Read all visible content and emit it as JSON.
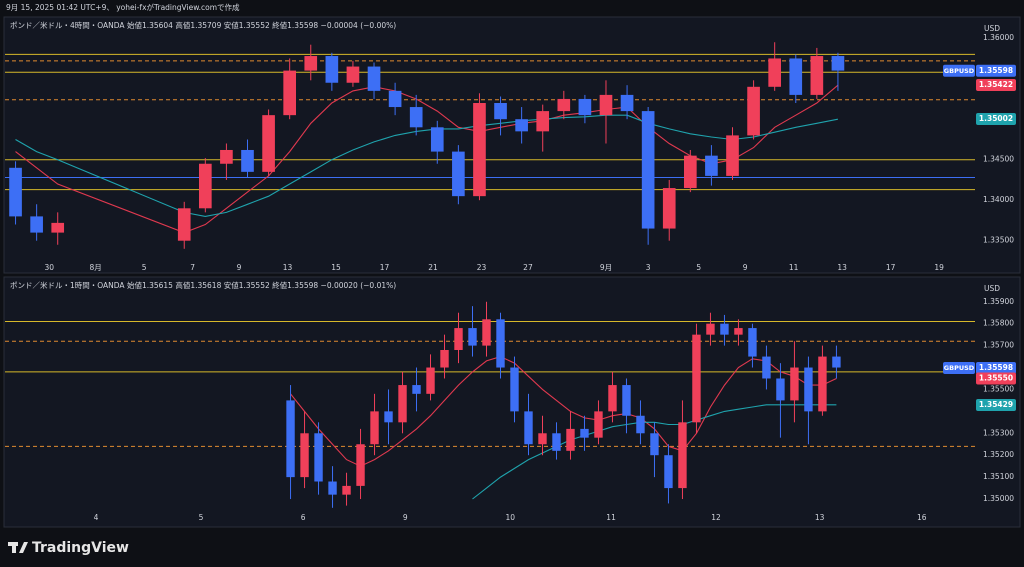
{
  "header": {
    "caption": "9月 15, 2025 01:42 UTC+9、 yohei-fxがTradingView.comで作成"
  },
  "footer": {
    "brand": "TradingView"
  },
  "chart_data": [
    {
      "type": "candlestick",
      "legend": "ポンド／米ドル・4時間・OANDA 始値1.35604 高値1.35709 安値1.35552 終値1.35598 −0.00004 (−0.00%)",
      "currency": "USD",
      "up_color": "#f0405a",
      "down_color": "#3d6ff5",
      "x": [
        0,
        1,
        2,
        8,
        9,
        10,
        11,
        12,
        13,
        14,
        15,
        16,
        17,
        18,
        19,
        20,
        21,
        22,
        23,
        24,
        25,
        26,
        27,
        28,
        29,
        30,
        31,
        32,
        33,
        34,
        35,
        36,
        37,
        38,
        39
      ],
      "open": [
        1.344,
        1.338,
        1.336,
        1.335,
        1.339,
        1.3445,
        1.3462,
        1.3435,
        1.3505,
        1.356,
        1.3578,
        1.3545,
        1.3565,
        1.3535,
        1.3515,
        1.349,
        1.346,
        1.3405,
        1.352,
        1.35,
        1.3485,
        1.351,
        1.3525,
        1.3505,
        1.353,
        1.351,
        1.3365,
        1.3415,
        1.3455,
        1.343,
        1.348,
        1.354,
        1.3575,
        1.353,
        1.3578
      ],
      "high": [
        1.3448,
        1.3395,
        1.3385,
        1.3398,
        1.3452,
        1.347,
        1.3475,
        1.3512,
        1.3575,
        1.3592,
        1.3582,
        1.3572,
        1.357,
        1.3545,
        1.353,
        1.3498,
        1.3468,
        1.3532,
        1.3528,
        1.3515,
        1.3518,
        1.3535,
        1.353,
        1.3548,
        1.3542,
        1.3515,
        1.3425,
        1.3462,
        1.3468,
        1.349,
        1.3548,
        1.3595,
        1.358,
        1.3588,
        1.3582
      ],
      "low": [
        1.337,
        1.335,
        1.3345,
        1.334,
        1.3385,
        1.3425,
        1.3428,
        1.343,
        1.35,
        1.3548,
        1.3535,
        1.354,
        1.3525,
        1.3505,
        1.348,
        1.3445,
        1.3395,
        1.34,
        1.348,
        1.347,
        1.346,
        1.35,
        1.3495,
        1.347,
        1.35,
        1.3345,
        1.335,
        1.341,
        1.3418,
        1.3425,
        1.3475,
        1.3535,
        1.352,
        1.3525,
        1.3535
      ],
      "close": [
        1.338,
        1.336,
        1.3372,
        1.339,
        1.3445,
        1.3462,
        1.3435,
        1.3505,
        1.356,
        1.3578,
        1.3545,
        1.3565,
        1.3535,
        1.3515,
        1.349,
        1.346,
        1.3405,
        1.352,
        1.35,
        1.3485,
        1.351,
        1.3525,
        1.3505,
        1.353,
        1.351,
        1.3365,
        1.3415,
        1.3455,
        1.343,
        1.348,
        1.354,
        1.3575,
        1.353,
        1.3578,
        1.356
      ],
      "series": [
        {
          "color": "#e0394f",
          "values": [
            1.346,
            1.344,
            1.342,
            1.336,
            1.337,
            1.339,
            1.341,
            1.343,
            1.346,
            1.3495,
            1.352,
            1.3535,
            1.354,
            1.3535,
            1.3525,
            1.351,
            1.349,
            1.3485,
            1.349,
            1.3495,
            1.3498,
            1.3505,
            1.3508,
            1.3512,
            1.3515,
            1.349,
            1.347,
            1.3455,
            1.3445,
            1.345,
            1.3465,
            1.349,
            1.3505,
            1.352,
            1.3542
          ]
        },
        {
          "color": "#1fa3ad",
          "values": [
            1.3475,
            1.346,
            1.345,
            1.3385,
            1.338,
            1.3385,
            1.3395,
            1.3405,
            1.342,
            1.3435,
            1.345,
            1.3462,
            1.3472,
            1.348,
            1.3485,
            1.3488,
            1.3488,
            1.3492,
            1.3495,
            1.3498,
            1.35,
            1.3502,
            1.3503,
            1.3505,
            1.3505,
            1.3495,
            1.3488,
            1.3482,
            1.3478,
            1.3475,
            1.3478,
            1.3484,
            1.349,
            1.3495,
            1.35
          ]
        }
      ],
      "hlines": [
        {
          "value": 1.358,
          "color": "#d6b82a",
          "dashed": false
        },
        {
          "value": 1.3572,
          "color": "#e08a30",
          "dashed": true
        },
        {
          "value": 1.3558,
          "color": "#d6b82a",
          "dashed": false
        },
        {
          "value": 1.3524,
          "color": "#e08a30",
          "dashed": true
        },
        {
          "value": 1.345,
          "color": "#d6b82a",
          "dashed": false
        },
        {
          "value": 1.3428,
          "color": "#3d6ff5",
          "dashed": false
        },
        {
          "value": 1.3413,
          "color": "#d6b82a",
          "dashed": false
        }
      ],
      "annotations": [
        {
          "name": "GBPUSD",
          "value": 1.35598,
          "label": "1.35598",
          "color": "#3d6ff5"
        },
        {
          "value": 1.35422,
          "label": "1.35422",
          "color": "#f0405a"
        },
        {
          "value": 1.35002,
          "label": "1.35002",
          "color": "#1fa3ad"
        }
      ],
      "xlim": [
        -0.5,
        45.5
      ],
      "xticks": [
        {
          "value": 1.6,
          "label": "30"
        },
        {
          "value": 3.8,
          "label": "8月"
        },
        {
          "value": 6.1,
          "label": "5"
        },
        {
          "value": 8.4,
          "label": "7"
        },
        {
          "value": 10.6,
          "label": "9"
        },
        {
          "value": 12.9,
          "label": "13"
        },
        {
          "value": 15.2,
          "label": "15"
        },
        {
          "value": 17.5,
          "label": "17"
        },
        {
          "value": 19.8,
          "label": "21"
        },
        {
          "value": 22.1,
          "label": "23"
        },
        {
          "value": 24.3,
          "label": "27"
        },
        {
          "value": 28.0,
          "label": "9月"
        },
        {
          "value": 30.0,
          "label": "3"
        },
        {
          "value": 32.4,
          "label": "5"
        },
        {
          "value": 34.6,
          "label": "9"
        },
        {
          "value": 36.9,
          "label": "11"
        },
        {
          "value": 39.2,
          "label": "13"
        },
        {
          "value": 41.5,
          "label": "17"
        },
        {
          "value": 43.8,
          "label": "19"
        }
      ],
      "ylim": [
        1.332,
        1.362
      ],
      "yticks": [
        {
          "value": 1.335,
          "label": "1.33500"
        },
        {
          "value": 1.34,
          "label": "1.34000"
        },
        {
          "value": 1.345,
          "label": "1.34500"
        },
        {
          "value": 1.36,
          "label": "1.36000"
        }
      ]
    },
    {
      "type": "candlestick",
      "legend": "ポンド／米ドル・1時間・OANDA 始値1.35615 高値1.35618 安値1.35552 終値1.35598 −0.00020 (−0.01%)",
      "currency": "USD",
      "up_color": "#f0405a",
      "down_color": "#3d6ff5",
      "x": [
        0,
        1,
        2,
        3,
        4,
        5,
        6,
        7,
        8,
        9,
        10,
        11,
        12,
        13,
        14,
        15,
        16,
        17,
        18,
        19,
        20,
        21,
        22,
        23,
        24,
        25,
        26,
        27,
        28,
        29,
        30,
        31,
        32,
        33,
        34,
        35,
        36,
        37,
        38,
        39
      ],
      "open": [
        1.3545,
        1.351,
        1.353,
        1.3508,
        1.3502,
        1.3506,
        1.3525,
        1.354,
        1.3535,
        1.3552,
        1.3548,
        1.356,
        1.3568,
        1.3578,
        1.357,
        1.3582,
        1.356,
        1.354,
        1.3525,
        1.353,
        1.3522,
        1.3532,
        1.3528,
        1.354,
        1.3552,
        1.3538,
        1.353,
        1.352,
        1.3505,
        1.3535,
        1.3575,
        1.358,
        1.3575,
        1.3578,
        1.3565,
        1.3555,
        1.3545,
        1.356,
        1.354,
        1.3565
      ],
      "high": [
        1.3552,
        1.354,
        1.3535,
        1.3515,
        1.3512,
        1.3532,
        1.3548,
        1.355,
        1.3558,
        1.356,
        1.3566,
        1.3575,
        1.3585,
        1.3588,
        1.359,
        1.3585,
        1.3565,
        1.3548,
        1.3538,
        1.3535,
        1.354,
        1.3538,
        1.3545,
        1.3558,
        1.3555,
        1.3545,
        1.3535,
        1.3525,
        1.3545,
        1.358,
        1.3585,
        1.3584,
        1.3582,
        1.358,
        1.357,
        1.3562,
        1.3572,
        1.3565,
        1.357,
        1.357
      ],
      "low": [
        1.35,
        1.3505,
        1.3502,
        1.3496,
        1.3497,
        1.35,
        1.352,
        1.3525,
        1.353,
        1.354,
        1.3545,
        1.3555,
        1.3562,
        1.3565,
        1.3565,
        1.3555,
        1.3535,
        1.352,
        1.352,
        1.3518,
        1.3518,
        1.3522,
        1.3525,
        1.3535,
        1.353,
        1.3525,
        1.351,
        1.3498,
        1.35,
        1.353,
        1.357,
        1.357,
        1.357,
        1.356,
        1.355,
        1.3528,
        1.3535,
        1.3525,
        1.3538,
        1.3555
      ],
      "close": [
        1.351,
        1.353,
        1.3508,
        1.3502,
        1.3506,
        1.3525,
        1.354,
        1.3535,
        1.3552,
        1.3548,
        1.356,
        1.3568,
        1.3578,
        1.357,
        1.3582,
        1.356,
        1.354,
        1.3525,
        1.353,
        1.3522,
        1.3532,
        1.3528,
        1.354,
        1.3552,
        1.3538,
        1.353,
        1.352,
        1.3505,
        1.3535,
        1.3575,
        1.358,
        1.3575,
        1.3578,
        1.3565,
        1.3555,
        1.3545,
        1.356,
        1.354,
        1.3565,
        1.356
      ],
      "series": [
        {
          "color": "#e0394f",
          "values": [
            1.3548,
            1.354,
            1.3532,
            1.3525,
            1.3518,
            1.3515,
            1.3518,
            1.3522,
            1.3527,
            1.3532,
            1.3538,
            1.3545,
            1.3552,
            1.3558,
            1.3563,
            1.3565,
            1.3562,
            1.3556,
            1.355,
            1.3545,
            1.354,
            1.3537,
            1.3536,
            1.3538,
            1.3539,
            1.3537,
            1.3532,
            1.3524,
            1.3522,
            1.353,
            1.3542,
            1.3552,
            1.356,
            1.3564,
            1.3563,
            1.3558,
            1.3556,
            1.3552,
            1.3552,
            1.3555
          ]
        },
        {
          "color": "#1fa3ad",
          "values": [
            null,
            null,
            null,
            null,
            null,
            null,
            null,
            null,
            null,
            null,
            null,
            null,
            null,
            1.35,
            1.3505,
            1.351,
            1.3514,
            1.3518,
            1.3521,
            1.3524,
            1.3527,
            1.3529,
            1.3531,
            1.3533,
            1.3534,
            1.3535,
            1.3535,
            1.3534,
            1.3534,
            1.3536,
            1.3538,
            1.354,
            1.3541,
            1.3542,
            1.3543,
            1.3543,
            1.3543,
            1.3543,
            1.3543,
            1.3543
          ]
        }
      ],
      "hlines": [
        {
          "value": 1.3581,
          "color": "#d6b82a",
          "dashed": false
        },
        {
          "value": 1.3572,
          "color": "#e08a30",
          "dashed": true
        },
        {
          "value": 1.3558,
          "color": "#d6b82a",
          "dashed": false
        },
        {
          "value": 1.3524,
          "color": "#e08a30",
          "dashed": true
        }
      ],
      "annotations": [
        {
          "name": "GBPUSD",
          "value": 1.35598,
          "label": "1.35598",
          "color": "#3d6ff5"
        },
        {
          "value": 1.3555,
          "label": "1.35550",
          "color": "#f0405a"
        },
        {
          "value": 1.35429,
          "label": "1.35429",
          "color": "#1fa3ad"
        }
      ],
      "xlim": [
        -20.4,
        48.9
      ],
      "xticks": [
        {
          "value": -13.9,
          "label": "4"
        },
        {
          "value": -6.4,
          "label": "5"
        },
        {
          "value": 0.9,
          "label": "6"
        },
        {
          "value": 8.2,
          "label": "9"
        },
        {
          "value": 15.7,
          "label": "10"
        },
        {
          "value": 22.9,
          "label": "11"
        },
        {
          "value": 30.4,
          "label": "12"
        },
        {
          "value": 37.8,
          "label": "13"
        },
        {
          "value": 45.1,
          "label": "16"
        }
      ],
      "ylim": [
        1.3495,
        1.3594
      ],
      "yticks": [
        {
          "value": 1.35,
          "label": "1.35000"
        },
        {
          "value": 1.351,
          "label": "1.35100"
        },
        {
          "value": 1.352,
          "label": "1.35200"
        },
        {
          "value": 1.353,
          "label": "1.35300"
        },
        {
          "value": 1.355,
          "label": "1.35500"
        },
        {
          "value": 1.357,
          "label": "1.35700"
        },
        {
          "value": 1.358,
          "label": "1.35800"
        },
        {
          "value": 1.359,
          "label": "1.35900"
        }
      ]
    }
  ]
}
